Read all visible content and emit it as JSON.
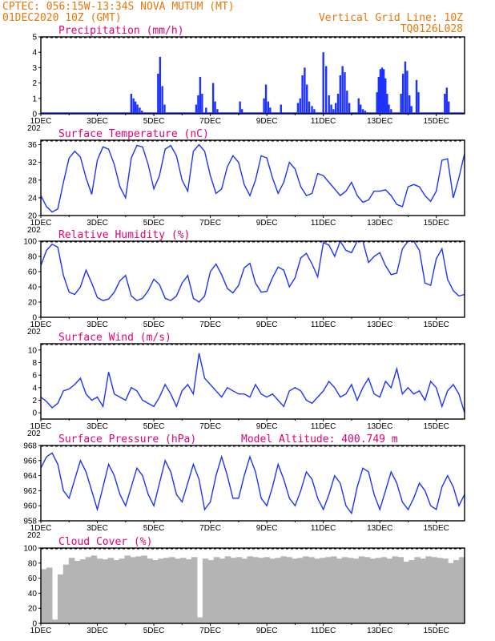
{
  "header": {
    "station_line": "CPTEC:   056:15W-13:34S   NOVA MUTUM (MT)",
    "date_line": "01DEC2020 10Z (GMT)",
    "grid_note": "Vertical Grid Line: 10Z",
    "code": "TQ0126L028"
  },
  "colors": {
    "header": "#e8760a",
    "title": "#e0007a",
    "series": "#1e32ff",
    "cloud": "#b4b4b4",
    "axis": "#000000"
  },
  "x_axis": {
    "days": [
      1,
      16
    ],
    "tick_labels": [
      "1DEC",
      "3DEC",
      "5DEC",
      "7DEC",
      "9DEC",
      "11DEC",
      "13DEC",
      "15DEC"
    ],
    "tick_days": [
      1,
      3,
      5,
      7,
      9,
      11,
      13,
      15
    ],
    "year_fragment": "202"
  },
  "chart_data": [
    {
      "type": "bar",
      "title": "Precipitation (mm/h)",
      "ylim": [
        0,
        5
      ],
      "yticks": [
        0,
        1,
        2,
        3,
        4,
        5
      ],
      "x": [
        4.2,
        4.28,
        4.35,
        4.42,
        4.5,
        4.58,
        5.15,
        5.22,
        5.3,
        5.38,
        6.5,
        6.57,
        6.64,
        6.71,
        6.85,
        7.1,
        7.17,
        7.25,
        8.05,
        8.12,
        8.9,
        8.97,
        9.05,
        9.12,
        9.5,
        10.1,
        10.18,
        10.26,
        10.34,
        10.42,
        10.5,
        10.6,
        10.68,
        11.0,
        11.1,
        11.2,
        11.28,
        11.36,
        11.44,
        11.52,
        11.6,
        11.68,
        11.76,
        11.84,
        11.92,
        12.25,
        12.32,
        12.4,
        12.48,
        12.9,
        12.96,
        13.02,
        13.08,
        13.14,
        13.2,
        13.26,
        13.32,
        13.4,
        13.75,
        13.82,
        13.9,
        13.97,
        14.05,
        14.12,
        14.3,
        14.37,
        15.3,
        15.37,
        15.44
      ],
      "values": [
        1.3,
        1.0,
        0.8,
        0.6,
        0.4,
        0.2,
        2.6,
        3.7,
        1.8,
        0.6,
        0.6,
        1.2,
        2.4,
        1.3,
        0.4,
        2.0,
        0.8,
        0.3,
        0.8,
        0.3,
        1.0,
        1.9,
        0.8,
        0.4,
        0.6,
        0.7,
        1.0,
        2.5,
        3.0,
        1.9,
        0.8,
        0.5,
        0.3,
        4.0,
        3.1,
        1.2,
        0.6,
        0.3,
        0.7,
        1.3,
        2.5,
        3.1,
        2.7,
        1.5,
        0.7,
        1.0,
        0.6,
        0.3,
        0.2,
        1.4,
        2.4,
        2.9,
        3.0,
        2.9,
        2.3,
        1.3,
        0.6,
        0.3,
        1.3,
        2.6,
        3.4,
        2.8,
        1.2,
        0.5,
        2.2,
        1.4,
        1.3,
        1.7,
        0.8
      ]
    },
    {
      "type": "line",
      "title": "Surface Temperature (nC)",
      "ylim": [
        20,
        37
      ],
      "yticks": [
        20,
        24,
        28,
        32,
        36
      ],
      "x": [
        1.0,
        1.2,
        1.4,
        1.6,
        1.8,
        2.0,
        2.2,
        2.4,
        2.6,
        2.8,
        3.0,
        3.2,
        3.4,
        3.6,
        3.8,
        4.0,
        4.2,
        4.4,
        4.6,
        4.8,
        5.0,
        5.2,
        5.4,
        5.6,
        5.8,
        6.0,
        6.2,
        6.4,
        6.6,
        6.8,
        7.0,
        7.2,
        7.4,
        7.6,
        7.8,
        8.0,
        8.2,
        8.4,
        8.6,
        8.8,
        9.0,
        9.2,
        9.4,
        9.6,
        9.8,
        10.0,
        10.2,
        10.4,
        10.6,
        10.8,
        11.0,
        11.2,
        11.4,
        11.6,
        11.8,
        12.0,
        12.2,
        12.4,
        12.6,
        12.8,
        13.0,
        13.2,
        13.4,
        13.6,
        13.8,
        14.0,
        14.2,
        14.4,
        14.6,
        14.8,
        15.0,
        15.2,
        15.4,
        15.6,
        15.8,
        16.0
      ],
      "values": [
        24.5,
        22.0,
        20.8,
        21.5,
        27.5,
        33.0,
        34.5,
        33.2,
        28.5,
        24.8,
        32.5,
        35.5,
        35.0,
        31.5,
        26.5,
        24.0,
        33.0,
        35.8,
        35.5,
        31.5,
        26.0,
        29.0,
        35.0,
        35.8,
        33.5,
        28.0,
        25.5,
        34.5,
        36.0,
        34.5,
        29.0,
        25.0,
        26.0,
        31.0,
        33.5,
        32.0,
        27.0,
        24.5,
        28.0,
        33.5,
        33.0,
        28.5,
        25.0,
        27.5,
        32.0,
        30.5,
        26.5,
        24.5,
        25.0,
        29.5,
        29.0,
        27.5,
        26.0,
        24.5,
        25.5,
        27.5,
        24.5,
        23.0,
        23.5,
        25.5,
        25.5,
        25.8,
        24.5,
        22.5,
        22.0,
        26.5,
        27.0,
        26.5,
        24.5,
        23.2,
        25.5,
        32.5,
        32.8,
        24.0,
        28.5,
        34.0
      ]
    },
    {
      "type": "line",
      "title": "Relative Humidity (%)",
      "ylim": [
        0,
        100
      ],
      "yticks": [
        0,
        20,
        40,
        60,
        80,
        100
      ],
      "x": [
        1.0,
        1.2,
        1.4,
        1.6,
        1.8,
        2.0,
        2.2,
        2.4,
        2.6,
        2.8,
        3.0,
        3.2,
        3.4,
        3.6,
        3.8,
        4.0,
        4.2,
        4.4,
        4.6,
        4.8,
        5.0,
        5.2,
        5.4,
        5.6,
        5.8,
        6.0,
        6.2,
        6.4,
        6.6,
        6.8,
        7.0,
        7.2,
        7.4,
        7.6,
        7.8,
        8.0,
        8.2,
        8.4,
        8.6,
        8.8,
        9.0,
        9.2,
        9.4,
        9.6,
        9.8,
        10.0,
        10.2,
        10.4,
        10.6,
        10.8,
        11.0,
        11.2,
        11.4,
        11.6,
        11.8,
        12.0,
        12.2,
        12.4,
        12.6,
        12.8,
        13.0,
        13.2,
        13.4,
        13.6,
        13.8,
        14.0,
        14.2,
        14.4,
        14.6,
        14.8,
        15.0,
        15.2,
        15.4,
        15.6,
        15.8,
        16.0
      ],
      "values": [
        68,
        88,
        96,
        92,
        55,
        33,
        30,
        40,
        62,
        45,
        26,
        22,
        24,
        33,
        48,
        55,
        28,
        22,
        25,
        35,
        50,
        43,
        25,
        22,
        28,
        45,
        55,
        25,
        20,
        28,
        60,
        70,
        56,
        38,
        32,
        42,
        65,
        71,
        45,
        33,
        34,
        52,
        66,
        62,
        40,
        52,
        78,
        84,
        70,
        53,
        98,
        95,
        80,
        100,
        88,
        85,
        100,
        100,
        72,
        80,
        85,
        68,
        56,
        58,
        90,
        100,
        100,
        88,
        45,
        42,
        77,
        90,
        50,
        35,
        28,
        30
      ]
    },
    {
      "type": "line",
      "title": "Surface Wind (m/s)",
      "ylim": [
        -1,
        11
      ],
      "yticks": [
        0,
        2,
        4,
        6,
        8,
        10
      ],
      "x": [
        1.0,
        1.2,
        1.4,
        1.6,
        1.8,
        2.0,
        2.2,
        2.4,
        2.6,
        2.8,
        3.0,
        3.2,
        3.4,
        3.6,
        3.8,
        4.0,
        4.2,
        4.4,
        4.6,
        4.8,
        5.0,
        5.2,
        5.4,
        5.6,
        5.8,
        6.0,
        6.2,
        6.4,
        6.6,
        6.8,
        7.0,
        7.2,
        7.4,
        7.6,
        7.8,
        8.0,
        8.2,
        8.4,
        8.6,
        8.8,
        9.0,
        9.2,
        9.4,
        9.6,
        9.8,
        10.0,
        10.2,
        10.4,
        10.6,
        10.8,
        11.0,
        11.2,
        11.4,
        11.6,
        11.8,
        12.0,
        12.2,
        12.4,
        12.6,
        12.8,
        13.0,
        13.2,
        13.4,
        13.6,
        13.8,
        14.0,
        14.2,
        14.4,
        14.6,
        14.8,
        15.0,
        15.2,
        15.4,
        15.6,
        15.8,
        16.0
      ],
      "values": [
        2.5,
        1.8,
        0.8,
        1.5,
        3.5,
        3.8,
        4.5,
        5.5,
        3.0,
        2.0,
        2.5,
        1.0,
        6.5,
        3.0,
        2.5,
        2.0,
        4.0,
        3.5,
        2.0,
        1.5,
        1.0,
        2.5,
        4.5,
        3.0,
        1.0,
        3.5,
        4.5,
        3.0,
        9.5,
        5.5,
        4.5,
        3.5,
        2.5,
        4.0,
        3.5,
        3.0,
        3.0,
        2.5,
        4.5,
        3.0,
        2.5,
        3.0,
        2.0,
        1.0,
        3.5,
        4.0,
        3.5,
        2.0,
        1.5,
        2.5,
        3.5,
        5.0,
        4.0,
        2.5,
        3.0,
        4.5,
        2.0,
        4.0,
        5.5,
        3.0,
        2.5,
        5.0,
        4.0,
        7.0,
        3.0,
        4.0,
        3.0,
        3.5,
        2.0,
        5.0,
        4.0,
        1.0,
        3.5,
        4.5,
        3.0,
        0.0
      ]
    },
    {
      "type": "line",
      "title": "Surface Pressure (hPa)",
      "annotation": "Model Altitude: 400.749  m",
      "ylim": [
        958,
        968
      ],
      "yticks": [
        958,
        960,
        962,
        964,
        966,
        968
      ],
      "x": [
        1.0,
        1.2,
        1.4,
        1.6,
        1.8,
        2.0,
        2.2,
        2.4,
        2.6,
        2.8,
        3.0,
        3.2,
        3.4,
        3.6,
        3.8,
        4.0,
        4.2,
        4.4,
        4.6,
        4.8,
        5.0,
        5.2,
        5.4,
        5.6,
        5.8,
        6.0,
        6.2,
        6.4,
        6.6,
        6.8,
        7.0,
        7.2,
        7.4,
        7.6,
        7.8,
        8.0,
        8.2,
        8.4,
        8.6,
        8.8,
        9.0,
        9.2,
        9.4,
        9.6,
        9.8,
        10.0,
        10.2,
        10.4,
        10.6,
        10.8,
        11.0,
        11.2,
        11.4,
        11.6,
        11.8,
        12.0,
        12.2,
        12.4,
        12.6,
        12.8,
        13.0,
        13.2,
        13.4,
        13.6,
        13.8,
        14.0,
        14.2,
        14.4,
        14.6,
        14.8,
        15.0,
        15.2,
        15.4,
        15.6,
        15.8,
        16.0
      ],
      "values": [
        965.0,
        966.5,
        967.0,
        965.5,
        962.0,
        961.0,
        963.5,
        966.0,
        964.5,
        962.0,
        959.5,
        962.5,
        965.5,
        964.0,
        961.5,
        960.0,
        962.5,
        965.0,
        964.0,
        961.5,
        960.0,
        963.0,
        966.0,
        964.5,
        961.5,
        960.5,
        963.0,
        965.5,
        963.5,
        959.5,
        960.5,
        964.0,
        966.5,
        964.0,
        961.0,
        961.0,
        964.0,
        966.5,
        964.5,
        961.0,
        960.0,
        962.5,
        965.5,
        963.5,
        961.0,
        960.0,
        962.0,
        964.5,
        963.5,
        961.0,
        959.5,
        961.5,
        964.0,
        963.0,
        960.0,
        959.0,
        962.5,
        965.0,
        964.5,
        961.5,
        959.5,
        962.0,
        964.5,
        963.0,
        960.5,
        959.5,
        961.0,
        963.0,
        962.0,
        960.0,
        959.5,
        962.5,
        964.0,
        962.5,
        960.0,
        961.5
      ]
    },
    {
      "type": "bar",
      "title": "Cloud Cover (%)",
      "ylim": [
        0,
        100
      ],
      "yticks": [
        0,
        20,
        40,
        60,
        80,
        100
      ],
      "x": [
        1.0,
        1.2,
        1.4,
        1.6,
        1.8,
        2.0,
        2.2,
        2.4,
        2.6,
        2.8,
        3.0,
        3.2,
        3.4,
        3.6,
        3.8,
        4.0,
        4.2,
        4.4,
        4.6,
        4.8,
        5.0,
        5.2,
        5.4,
        5.6,
        5.8,
        6.0,
        6.2,
        6.4,
        6.6,
        6.8,
        7.0,
        7.2,
        7.4,
        7.6,
        7.8,
        8.0,
        8.2,
        8.4,
        8.6,
        8.8,
        9.0,
        9.2,
        9.4,
        9.6,
        9.8,
        10.0,
        10.2,
        10.4,
        10.6,
        10.8,
        11.0,
        11.2,
        11.4,
        11.6,
        11.8,
        12.0,
        12.2,
        12.4,
        12.6,
        12.8,
        13.0,
        13.2,
        13.4,
        13.6,
        13.8,
        14.0,
        14.2,
        14.4,
        14.6,
        14.8,
        15.0,
        15.2,
        15.4,
        15.6,
        15.8,
        16.0
      ],
      "values": [
        72,
        74,
        5,
        65,
        78,
        87,
        83,
        85,
        88,
        90,
        86,
        85,
        87,
        84,
        86,
        90,
        88,
        89,
        90,
        86,
        84,
        86,
        87,
        88,
        86,
        87,
        85,
        88,
        8,
        86,
        84,
        88,
        86,
        89,
        87,
        88,
        86,
        89,
        88,
        87,
        88,
        86,
        87,
        89,
        88,
        86,
        87,
        89,
        88,
        86,
        87,
        88,
        89,
        86,
        88,
        87,
        86,
        89,
        88,
        86,
        87,
        88,
        86,
        89,
        88,
        82,
        84,
        88,
        86,
        89,
        88,
        87,
        86,
        80,
        84,
        88
      ]
    }
  ]
}
